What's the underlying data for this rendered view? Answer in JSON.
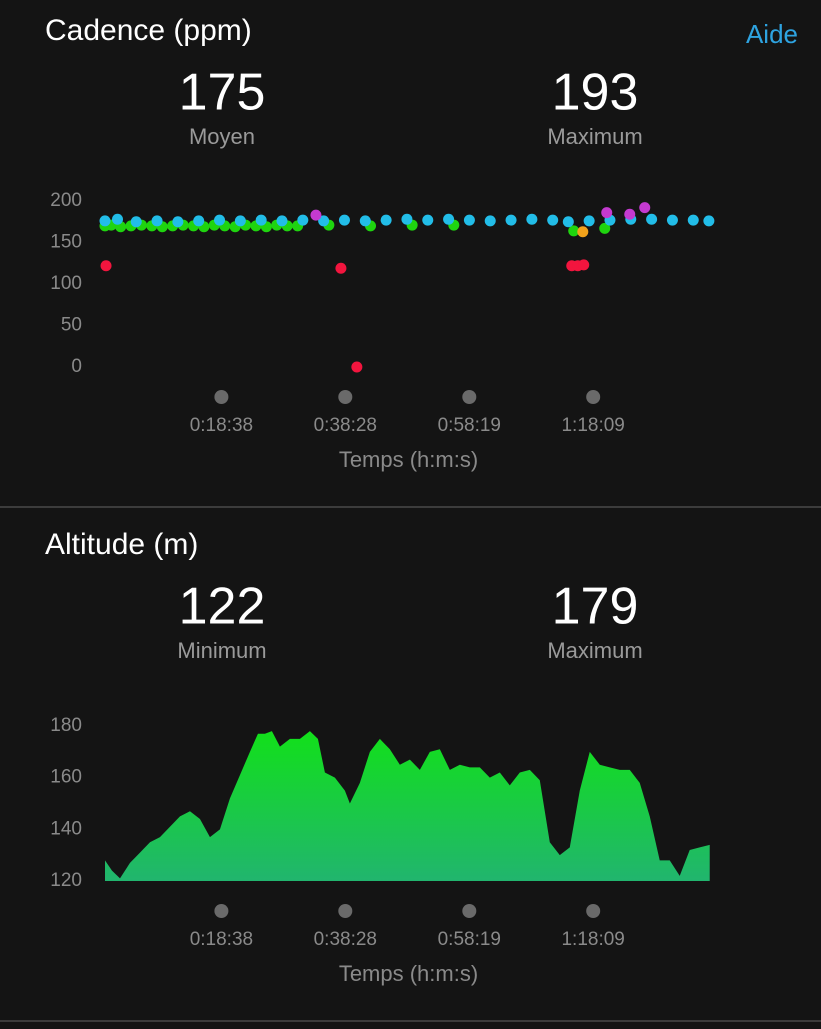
{
  "help_link": "Aide",
  "chart_data": [
    {
      "type": "scatter",
      "title": "Cadence (ppm)",
      "stats": [
        {
          "value": 175,
          "label": "Moyen"
        },
        {
          "value": 193,
          "label": "Maximum"
        }
      ],
      "xlabel": "Temps (h:m:s)",
      "xlim": [
        0,
        5830
      ],
      "xticks": [
        {
          "value": 1118,
          "label": "0:18:38"
        },
        {
          "value": 2308,
          "label": "0:38:28"
        },
        {
          "value": 3499,
          "label": "0:58:19"
        },
        {
          "value": 4689,
          "label": "1:18:09"
        }
      ],
      "ylim": [
        0,
        200
      ],
      "yticks": [
        0,
        50,
        100,
        150,
        200
      ],
      "series": [
        {
          "color": "#1fd40f",
          "x": [
            0,
            60,
            150,
            250,
            350,
            450,
            550,
            650,
            750,
            850,
            950,
            1050,
            1150,
            1250,
            1350,
            1450,
            1550,
            1650,
            1750,
            1850,
            2150,
            2550,
            2950,
            3350,
            4502,
            4800
          ],
          "values": [
            170,
            171,
            169,
            170,
            171,
            170,
            169,
            170,
            171,
            170,
            169,
            171,
            170,
            169,
            171,
            170,
            169,
            171,
            170,
            170,
            171,
            170,
            171,
            171,
            164,
            167
          ]
        },
        {
          "color": "#22bde8",
          "x": [
            0,
            120,
            300,
            500,
            700,
            900,
            1100,
            1300,
            1500,
            1700,
            1900,
            2100,
            2300,
            2500,
            2700,
            2900,
            3100,
            3300,
            3500,
            3700,
            3900,
            4100,
            4300,
            4450,
            4650,
            4850,
            5050,
            5250,
            5450,
            5650,
            5800
          ],
          "values": [
            176,
            178,
            175,
            176,
            175,
            176,
            177,
            176,
            177,
            176,
            177,
            176,
            177,
            176,
            177,
            178,
            177,
            178,
            177,
            176,
            177,
            178,
            177,
            175,
            176,
            177,
            178,
            178,
            177,
            177,
            176
          ]
        },
        {
          "color": "#f2153e",
          "x": [
            10,
            2266,
            2419,
            4483,
            4541,
            4598
          ],
          "values": [
            122,
            119,
            0,
            122,
            122,
            123
          ]
        },
        {
          "color": "#c43ad0",
          "x": [
            2026,
            4819,
            5040,
            5184
          ],
          "values": [
            183,
            186,
            184,
            192
          ]
        },
        {
          "color": "#f2a21b",
          "x": [
            4589
          ],
          "values": [
            163
          ]
        }
      ]
    },
    {
      "type": "area",
      "title": "Altitude (m)",
      "stats": [
        {
          "value": 122,
          "label": "Minimum"
        },
        {
          "value": 179,
          "label": "Maximum"
        }
      ],
      "xlabel": "Temps (h:m:s)",
      "xlim": [
        0,
        5830
      ],
      "xticks": [
        {
          "value": 1118,
          "label": "0:18:38"
        },
        {
          "value": 2308,
          "label": "0:38:28"
        },
        {
          "value": 3499,
          "label": "0:58:19"
        },
        {
          "value": 4689,
          "label": "1:18:09"
        }
      ],
      "ylim": [
        120,
        180
      ],
      "yticks": [
        120,
        140,
        160,
        180
      ],
      "series": [
        {
          "color": "#12e01a",
          "x": [
            0,
            67,
            144,
            240,
            336,
            432,
            528,
            624,
            720,
            816,
            912,
            1008,
            1104,
            1200,
            1296,
            1392,
            1469,
            1536,
            1603,
            1680,
            1776,
            1872,
            1968,
            2045,
            2112,
            2208,
            2304,
            2352,
            2448,
            2544,
            2640,
            2736,
            2832,
            2928,
            3024,
            3120,
            3216,
            3312,
            3408,
            3504,
            3600,
            3696,
            3792,
            3888,
            3984,
            4080,
            4176,
            4272,
            4368,
            4464,
            4560,
            4656,
            4752,
            4848,
            4944,
            5040,
            5136,
            5232,
            5328,
            5424,
            5520,
            5616,
            5712,
            5808
          ],
          "values": [
            128,
            124,
            121,
            127,
            131,
            135,
            137,
            141,
            145,
            147,
            144,
            137,
            140,
            152,
            161,
            170,
            177,
            177,
            178,
            172,
            175,
            175,
            178,
            175,
            162,
            160,
            155,
            150,
            158,
            170,
            175,
            171,
            165,
            167,
            163,
            170,
            171,
            163,
            165,
            164,
            164,
            160,
            162,
            157,
            162,
            163,
            159,
            135,
            130,
            133,
            155,
            170,
            165,
            164,
            163,
            163,
            158,
            145,
            128,
            128,
            122,
            132,
            133,
            134
          ]
        }
      ]
    }
  ]
}
